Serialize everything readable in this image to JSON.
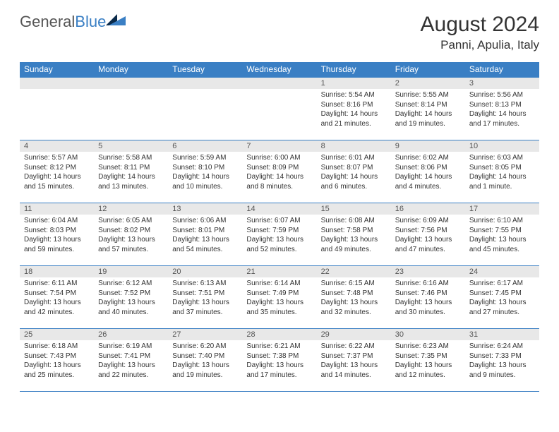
{
  "logo": {
    "general": "General",
    "blue": "Blue"
  },
  "title": "August 2024",
  "location": "Panni, Apulia, Italy",
  "colors": {
    "headerBar": "#3a7fc4",
    "headerText": "#ffffff",
    "dayBand": "#e8e8e8",
    "rowDivider": "#3a7fc4",
    "bodyText": "#333333",
    "logoGray": "#555555",
    "logoBlue": "#3a7fc4",
    "logoTriDark": "#0a2a4a",
    "logoTriBlue": "#3a7fc4",
    "background": "#ffffff"
  },
  "dayNames": [
    "Sunday",
    "Monday",
    "Tuesday",
    "Wednesday",
    "Thursday",
    "Friday",
    "Saturday"
  ],
  "weeks": [
    [
      {
        "n": "",
        "sr": "",
        "ss": "",
        "dl": ""
      },
      {
        "n": "",
        "sr": "",
        "ss": "",
        "dl": ""
      },
      {
        "n": "",
        "sr": "",
        "ss": "",
        "dl": ""
      },
      {
        "n": "",
        "sr": "",
        "ss": "",
        "dl": ""
      },
      {
        "n": "1",
        "sr": "Sunrise: 5:54 AM",
        "ss": "Sunset: 8:16 PM",
        "dl": "Daylight: 14 hours and 21 minutes."
      },
      {
        "n": "2",
        "sr": "Sunrise: 5:55 AM",
        "ss": "Sunset: 8:14 PM",
        "dl": "Daylight: 14 hours and 19 minutes."
      },
      {
        "n": "3",
        "sr": "Sunrise: 5:56 AM",
        "ss": "Sunset: 8:13 PM",
        "dl": "Daylight: 14 hours and 17 minutes."
      }
    ],
    [
      {
        "n": "4",
        "sr": "Sunrise: 5:57 AM",
        "ss": "Sunset: 8:12 PM",
        "dl": "Daylight: 14 hours and 15 minutes."
      },
      {
        "n": "5",
        "sr": "Sunrise: 5:58 AM",
        "ss": "Sunset: 8:11 PM",
        "dl": "Daylight: 14 hours and 13 minutes."
      },
      {
        "n": "6",
        "sr": "Sunrise: 5:59 AM",
        "ss": "Sunset: 8:10 PM",
        "dl": "Daylight: 14 hours and 10 minutes."
      },
      {
        "n": "7",
        "sr": "Sunrise: 6:00 AM",
        "ss": "Sunset: 8:09 PM",
        "dl": "Daylight: 14 hours and 8 minutes."
      },
      {
        "n": "8",
        "sr": "Sunrise: 6:01 AM",
        "ss": "Sunset: 8:07 PM",
        "dl": "Daylight: 14 hours and 6 minutes."
      },
      {
        "n": "9",
        "sr": "Sunrise: 6:02 AM",
        "ss": "Sunset: 8:06 PM",
        "dl": "Daylight: 14 hours and 4 minutes."
      },
      {
        "n": "10",
        "sr": "Sunrise: 6:03 AM",
        "ss": "Sunset: 8:05 PM",
        "dl": "Daylight: 14 hours and 1 minute."
      }
    ],
    [
      {
        "n": "11",
        "sr": "Sunrise: 6:04 AM",
        "ss": "Sunset: 8:03 PM",
        "dl": "Daylight: 13 hours and 59 minutes."
      },
      {
        "n": "12",
        "sr": "Sunrise: 6:05 AM",
        "ss": "Sunset: 8:02 PM",
        "dl": "Daylight: 13 hours and 57 minutes."
      },
      {
        "n": "13",
        "sr": "Sunrise: 6:06 AM",
        "ss": "Sunset: 8:01 PM",
        "dl": "Daylight: 13 hours and 54 minutes."
      },
      {
        "n": "14",
        "sr": "Sunrise: 6:07 AM",
        "ss": "Sunset: 7:59 PM",
        "dl": "Daylight: 13 hours and 52 minutes."
      },
      {
        "n": "15",
        "sr": "Sunrise: 6:08 AM",
        "ss": "Sunset: 7:58 PM",
        "dl": "Daylight: 13 hours and 49 minutes."
      },
      {
        "n": "16",
        "sr": "Sunrise: 6:09 AM",
        "ss": "Sunset: 7:56 PM",
        "dl": "Daylight: 13 hours and 47 minutes."
      },
      {
        "n": "17",
        "sr": "Sunrise: 6:10 AM",
        "ss": "Sunset: 7:55 PM",
        "dl": "Daylight: 13 hours and 45 minutes."
      }
    ],
    [
      {
        "n": "18",
        "sr": "Sunrise: 6:11 AM",
        "ss": "Sunset: 7:54 PM",
        "dl": "Daylight: 13 hours and 42 minutes."
      },
      {
        "n": "19",
        "sr": "Sunrise: 6:12 AM",
        "ss": "Sunset: 7:52 PM",
        "dl": "Daylight: 13 hours and 40 minutes."
      },
      {
        "n": "20",
        "sr": "Sunrise: 6:13 AM",
        "ss": "Sunset: 7:51 PM",
        "dl": "Daylight: 13 hours and 37 minutes."
      },
      {
        "n": "21",
        "sr": "Sunrise: 6:14 AM",
        "ss": "Sunset: 7:49 PM",
        "dl": "Daylight: 13 hours and 35 minutes."
      },
      {
        "n": "22",
        "sr": "Sunrise: 6:15 AM",
        "ss": "Sunset: 7:48 PM",
        "dl": "Daylight: 13 hours and 32 minutes."
      },
      {
        "n": "23",
        "sr": "Sunrise: 6:16 AM",
        "ss": "Sunset: 7:46 PM",
        "dl": "Daylight: 13 hours and 30 minutes."
      },
      {
        "n": "24",
        "sr": "Sunrise: 6:17 AM",
        "ss": "Sunset: 7:45 PM",
        "dl": "Daylight: 13 hours and 27 minutes."
      }
    ],
    [
      {
        "n": "25",
        "sr": "Sunrise: 6:18 AM",
        "ss": "Sunset: 7:43 PM",
        "dl": "Daylight: 13 hours and 25 minutes."
      },
      {
        "n": "26",
        "sr": "Sunrise: 6:19 AM",
        "ss": "Sunset: 7:41 PM",
        "dl": "Daylight: 13 hours and 22 minutes."
      },
      {
        "n": "27",
        "sr": "Sunrise: 6:20 AM",
        "ss": "Sunset: 7:40 PM",
        "dl": "Daylight: 13 hours and 19 minutes."
      },
      {
        "n": "28",
        "sr": "Sunrise: 6:21 AM",
        "ss": "Sunset: 7:38 PM",
        "dl": "Daylight: 13 hours and 17 minutes."
      },
      {
        "n": "29",
        "sr": "Sunrise: 6:22 AM",
        "ss": "Sunset: 7:37 PM",
        "dl": "Daylight: 13 hours and 14 minutes."
      },
      {
        "n": "30",
        "sr": "Sunrise: 6:23 AM",
        "ss": "Sunset: 7:35 PM",
        "dl": "Daylight: 13 hours and 12 minutes."
      },
      {
        "n": "31",
        "sr": "Sunrise: 6:24 AM",
        "ss": "Sunset: 7:33 PM",
        "dl": "Daylight: 13 hours and 9 minutes."
      }
    ]
  ]
}
